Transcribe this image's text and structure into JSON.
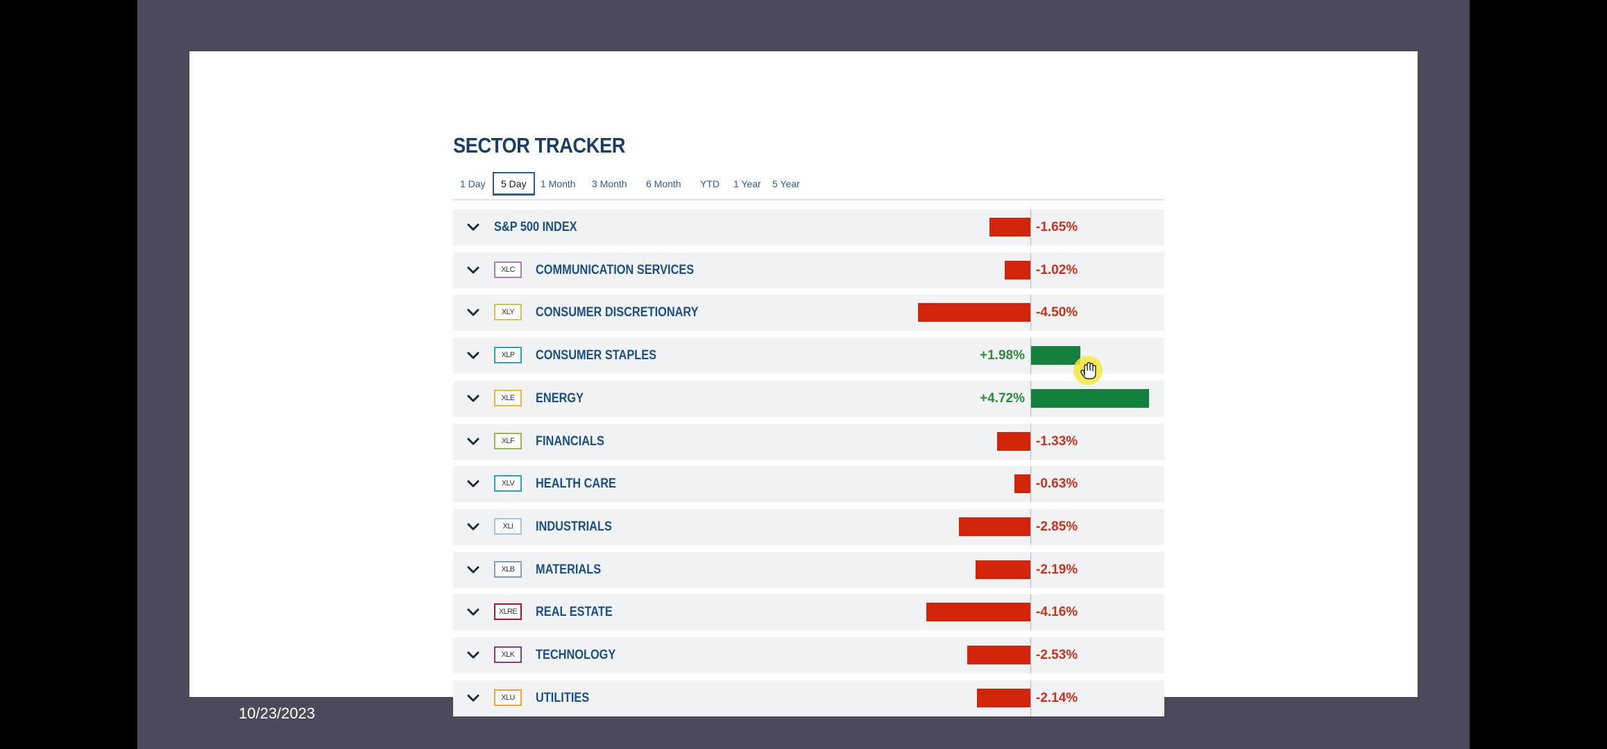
{
  "date": "10/23/2023",
  "tracker": {
    "title": "SECTOR TRACKER",
    "tabs": [
      {
        "label": "1 Day",
        "active": false
      },
      {
        "label": "5 Day",
        "active": true
      },
      {
        "label": "1 Month",
        "active": false
      },
      {
        "label": "3 Month",
        "active": false
      },
      {
        "label": "6 Month",
        "active": false
      },
      {
        "label": "YTD",
        "active": false
      },
      {
        "label": "1 Year",
        "active": false
      },
      {
        "label": "5 Year",
        "active": false
      }
    ],
    "rows": [
      {
        "ticker": "",
        "name": "S&P 500 INDEX",
        "change_pct": -1.65,
        "change_label": "-1.65%",
        "badge_color": ""
      },
      {
        "ticker": "XLC",
        "name": "COMMUNICATION SERVICES",
        "change_pct": -1.02,
        "change_label": "-1.02%",
        "badge_color": "#a57fb6"
      },
      {
        "ticker": "XLY",
        "name": "CONSUMER DISCRETIONARY",
        "change_pct": -4.5,
        "change_label": "-4.50%",
        "badge_color": "#c9c75a"
      },
      {
        "ticker": "XLP",
        "name": "CONSUMER STAPLES",
        "change_pct": 1.98,
        "change_label": "+1.98%",
        "badge_color": "#2c9fc7"
      },
      {
        "ticker": "XLE",
        "name": "ENERGY",
        "change_pct": 4.72,
        "change_label": "+4.72%",
        "badge_color": "#f2b632"
      },
      {
        "ticker": "XLF",
        "name": "FINANCIALS",
        "change_pct": -1.33,
        "change_label": "-1.33%",
        "badge_color": "#9ab956"
      },
      {
        "ticker": "XLV",
        "name": "HEALTH CARE",
        "change_pct": -0.63,
        "change_label": "-0.63%",
        "badge_color": "#2a9fd6"
      },
      {
        "ticker": "XLI",
        "name": "INDUSTRIALS",
        "change_pct": -2.85,
        "change_label": "-2.85%",
        "badge_color": "#9cc6e4"
      },
      {
        "ticker": "XLB",
        "name": "MATERIALS",
        "change_pct": -2.19,
        "change_label": "-2.19%",
        "badge_color": "#8b9cba"
      },
      {
        "ticker": "XLRE",
        "name": "REAL ESTATE",
        "change_pct": -4.16,
        "change_label": "-4.16%",
        "badge_color": "#9a1b2f"
      },
      {
        "ticker": "XLK",
        "name": "TECHNOLOGY",
        "change_pct": -2.53,
        "change_label": "-2.53%",
        "badge_color": "#8e3d8e"
      },
      {
        "ticker": "XLU",
        "name": "UTILITIES",
        "change_pct": -2.14,
        "change_label": "-2.14%",
        "badge_color": "#f0a22e"
      }
    ]
  },
  "colors": {
    "negative": "#d32409",
    "positive": "#13803d",
    "negative_text": "#c8321d",
    "positive_text": "#2e8b3c",
    "accent": "#1b4f87"
  }
}
